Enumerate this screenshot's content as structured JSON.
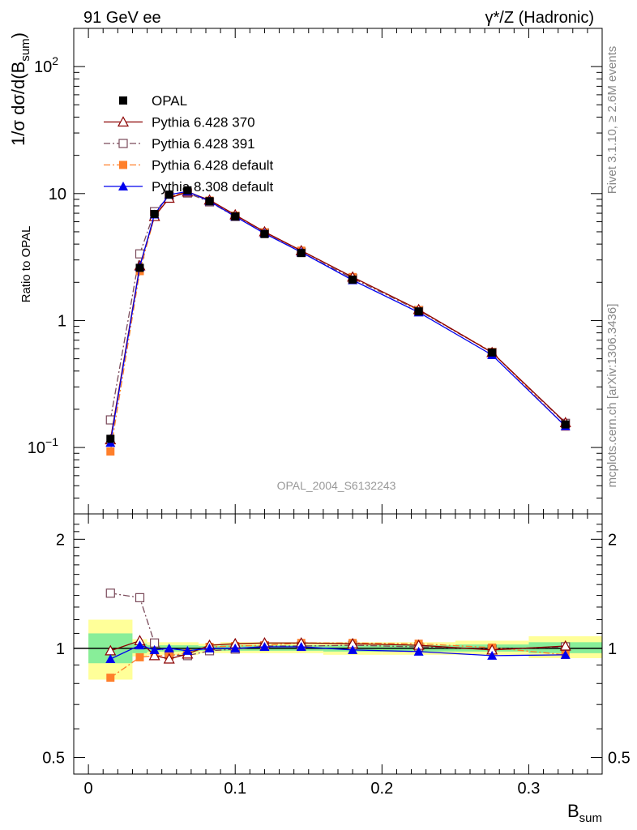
{
  "header": {
    "left": "91 GeV ee",
    "right_main": "γ*/Z (Hadronic)"
  },
  "side_text": {
    "rivet": "Rivet 3.1.10, ≥ 2.6M events",
    "mcplots": "mcplots.cern.ch [arXiv:1306.3436]"
  },
  "chart_data": [
    {
      "type": "line",
      "panel": "main",
      "ylabel": "1/σ dσ/d(B_sum)",
      "yscale": "log",
      "ylim": [
        0.03,
        200
      ],
      "xlim": [
        -0.01,
        0.35
      ],
      "y_ticks": [
        {
          "v": 0.1,
          "label": "10",
          "sup": "−1"
        },
        {
          "v": 1,
          "label": "1",
          "sup": ""
        },
        {
          "v": 10,
          "label": "10",
          "sup": ""
        },
        {
          "v": 100,
          "label": "10",
          "sup": "2"
        }
      ],
      "watermark": "OPAL_2004_S6132243",
      "legend": {
        "position": "top-left"
      },
      "x": [
        0.015,
        0.035,
        0.045,
        0.055,
        0.0675,
        0.0825,
        0.1,
        0.12,
        0.145,
        0.18,
        0.225,
        0.275,
        0.325
      ],
      "series": [
        {
          "name": "OPAL",
          "color": "#000000",
          "marker": "square-filled",
          "line": "none",
          "values": [
            0.117,
            2.6,
            6.9,
            9.8,
            10.6,
            8.7,
            6.6,
            4.8,
            3.4,
            2.1,
            1.18,
            0.56,
            0.152
          ]
        },
        {
          "name": "Pythia 6.428 370",
          "color": "#8b0000",
          "marker": "triangle-open",
          "line": "solid",
          "values": [
            0.115,
            2.7,
            6.6,
            9.2,
            10.3,
            8.9,
            6.8,
            5.0,
            3.55,
            2.2,
            1.22,
            0.56,
            0.157
          ]
        },
        {
          "name": "Pythia 6.428 391",
          "color": "#7a4a5a",
          "marker": "square-open",
          "line": "dashdot",
          "values": [
            0.165,
            3.35,
            7.2,
            9.5,
            10.1,
            8.6,
            6.6,
            4.9,
            3.45,
            2.15,
            1.2,
            0.56,
            0.155
          ]
        },
        {
          "name": "Pythia 6.428 default",
          "color": "#ff7f2a",
          "marker": "square-filled",
          "line": "dashdot",
          "values": [
            0.093,
            2.45,
            6.6,
            9.4,
            10.4,
            8.8,
            6.7,
            4.95,
            3.55,
            2.2,
            1.21,
            0.565,
            0.146
          ]
        },
        {
          "name": "Pythia 8.308 default",
          "color": "#0000ee",
          "marker": "triangle-filled",
          "line": "solid",
          "values": [
            0.109,
            2.65,
            6.85,
            9.8,
            10.4,
            8.7,
            6.6,
            4.85,
            3.45,
            2.08,
            1.16,
            0.535,
            0.147
          ]
        }
      ]
    },
    {
      "type": "line",
      "panel": "ratio",
      "ylabel": "Ratio to OPAL",
      "xlabel": "B_sum",
      "ylim": [
        0.45,
        2.35
      ],
      "yscale": "log",
      "xlim": [
        -0.01,
        0.35
      ],
      "x_ticks": [
        "0",
        "0.1",
        "0.2",
        "0.3"
      ],
      "y_ticks": [
        "0.5",
        "1",
        "2"
      ],
      "bands": [
        {
          "x0": 0.0,
          "x1": 0.03,
          "yellow": [
            0.82,
            1.2
          ],
          "green": [
            0.91,
            1.1
          ]
        },
        {
          "x0": 0.03,
          "x1": 0.04,
          "yellow": [
            0.95,
            1.06
          ],
          "green": [
            0.97,
            1.03
          ]
        },
        {
          "x0": 0.04,
          "x1": 0.075,
          "yellow": [
            0.96,
            1.04
          ],
          "green": [
            0.98,
            1.02
          ]
        },
        {
          "x0": 0.075,
          "x1": 0.09,
          "yellow": [
            0.97,
            1.03
          ],
          "green": [
            0.985,
            1.015
          ]
        },
        {
          "x0": 0.09,
          "x1": 0.16,
          "yellow": [
            0.97,
            1.04
          ],
          "green": [
            0.985,
            1.02
          ]
        },
        {
          "x0": 0.16,
          "x1": 0.2,
          "yellow": [
            0.96,
            1.04
          ],
          "green": [
            0.98,
            1.02
          ]
        },
        {
          "x0": 0.2,
          "x1": 0.25,
          "yellow": [
            0.96,
            1.04
          ],
          "green": [
            0.98,
            1.02
          ]
        },
        {
          "x0": 0.25,
          "x1": 0.3,
          "yellow": [
            0.96,
            1.05
          ],
          "green": [
            0.98,
            1.025
          ]
        },
        {
          "x0": 0.3,
          "x1": 0.35,
          "yellow": [
            0.94,
            1.08
          ],
          "green": [
            0.97,
            1.04
          ]
        }
      ],
      "x": [
        0.015,
        0.035,
        0.045,
        0.055,
        0.0675,
        0.0825,
        0.1,
        0.12,
        0.145,
        0.18,
        0.225,
        0.275,
        0.325
      ],
      "series": [
        {
          "name": "Pythia 6.428 370",
          "values": [
            0.985,
            1.05,
            0.955,
            0.935,
            0.965,
            1.02,
            1.03,
            1.035,
            1.035,
            1.03,
            1.02,
            0.99,
            1.015
          ]
        },
        {
          "name": "Pythia 6.428 391",
          "values": [
            1.42,
            1.38,
            1.035,
            0.96,
            0.955,
            0.985,
            0.995,
            1.015,
            1.015,
            1.02,
            1.01,
            0.995,
            1.01
          ]
        },
        {
          "name": "Pythia 6.428 default",
          "values": [
            0.83,
            0.945,
            0.955,
            0.955,
            0.97,
            1.01,
            1.015,
            1.02,
            1.035,
            1.035,
            1.03,
            1.005,
            0.96
          ]
        },
        {
          "name": "Pythia 8.308 default",
          "values": [
            0.935,
            1.02,
            0.99,
            1.0,
            0.985,
            1.0,
            1.0,
            1.01,
            1.01,
            0.99,
            0.98,
            0.955,
            0.96
          ]
        }
      ]
    }
  ]
}
